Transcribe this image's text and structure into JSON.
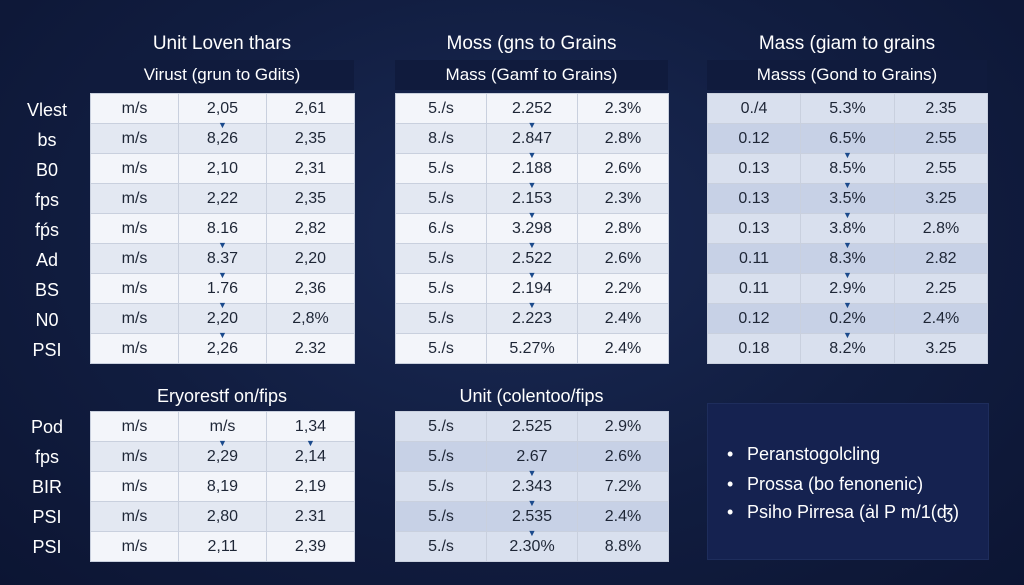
{
  "tables": [
    {
      "title": "Unit Loven thars",
      "subtitle": "Virust (grun to Gdits)",
      "rows": [
        {
          "label": "Vlest",
          "cells": [
            "m/s",
            "2,05",
            "2,61"
          ]
        },
        {
          "label": "bs",
          "cells": [
            "m/s",
            "8,26",
            "2,35"
          ]
        },
        {
          "label": "B0",
          "cells": [
            "m/s",
            "2,10",
            "2,31"
          ]
        },
        {
          "label": "fps",
          "cells": [
            "m/s",
            "2,22",
            "2,35"
          ]
        },
        {
          "label": "fṕs",
          "cells": [
            "m/s",
            "8.16",
            "2,82"
          ]
        },
        {
          "label": "Ad",
          "cells": [
            "m/s",
            "8.37",
            "2,20"
          ]
        },
        {
          "label": "BS",
          "cells": [
            "m/s",
            "1.76",
            "2,36"
          ]
        },
        {
          "label": "N0",
          "cells": [
            "m/s",
            "2,20",
            "2,8%"
          ]
        },
        {
          "label": "PSI",
          "cells": [
            "m/s",
            "2,26",
            "2.32"
          ]
        }
      ]
    },
    {
      "title": "Moss (gns to Grains",
      "subtitle": "Mass (Gamf to Grains)",
      "rows": [
        {
          "cells": [
            "5./s",
            "2.252",
            "2.3%"
          ]
        },
        {
          "cells": [
            "8./s",
            "2.847",
            "2.8%"
          ]
        },
        {
          "cells": [
            "5./s",
            "2.188",
            "2.6%"
          ]
        },
        {
          "cells": [
            "5./s",
            "2.153",
            "2.3%"
          ]
        },
        {
          "cells": [
            "6./s",
            "3.298",
            "2.8%"
          ]
        },
        {
          "cells": [
            "5./s",
            "2.522",
            "2.6%"
          ]
        },
        {
          "cells": [
            "5./s",
            "2.194",
            "2.2%"
          ]
        },
        {
          "cells": [
            "5./s",
            "2.223",
            "2.4%"
          ]
        },
        {
          "cells": [
            "5./s",
            "5.27%",
            "2.4%"
          ]
        }
      ]
    },
    {
      "title": "Mass (giam to grains",
      "subtitle": "Masss (Gond to Grains)",
      "rows": [
        {
          "cells": [
            "0./4",
            "5.3%",
            "2.35"
          ]
        },
        {
          "cells": [
            "0.12",
            "6.5%",
            "2.55"
          ]
        },
        {
          "cells": [
            "0.13",
            "8.5%",
            "2.55"
          ]
        },
        {
          "cells": [
            "0.13",
            "3.5%",
            "3.25"
          ]
        },
        {
          "cells": [
            "0.13",
            "3.8%",
            "2.8%"
          ]
        },
        {
          "cells": [
            "0.11",
            "8.3%",
            "2.82"
          ]
        },
        {
          "cells": [
            "0.11",
            "2.9%",
            "2.25"
          ]
        },
        {
          "cells": [
            "0.12",
            "0.2%",
            "2.4%"
          ]
        },
        {
          "cells": [
            "0.18",
            "8.2%",
            "3.25"
          ]
        }
      ]
    },
    {
      "title": "Eryorestf on/fips",
      "rows": [
        {
          "label": "Pod",
          "cells": [
            "m/s",
            "m/s",
            "1,34"
          ]
        },
        {
          "label": "fps",
          "cells": [
            "m/s",
            "2,29",
            "2,14"
          ]
        },
        {
          "label": "BIR",
          "cells": [
            "m/s",
            "8,19",
            "2,19"
          ]
        },
        {
          "label": "PSI",
          "cells": [
            "m/s",
            "2,80",
            "2.31"
          ]
        },
        {
          "label": "PSI",
          "cells": [
            "m/s",
            "2,11",
            "2,39"
          ]
        }
      ]
    },
    {
      "title": "Unit (colentoo/fips",
      "rows": [
        {
          "cells": [
            "5./s",
            "2.525",
            "2.9%"
          ]
        },
        {
          "cells": [
            "5./s",
            "2.67",
            "2.6%"
          ]
        },
        {
          "cells": [
            "5./s",
            "2.343",
            "7.2%"
          ]
        },
        {
          "cells": [
            "5./s",
            "2.535",
            "2.4%"
          ]
        },
        {
          "cells": [
            "5./s",
            "2.30%",
            "8.8%"
          ]
        }
      ]
    }
  ],
  "notes": {
    "items": [
      "Peranstogolcling",
      "Prossa (bo fenonenic)",
      "Psiho Pirresa (ȧl P m/1(ʤ)"
    ]
  }
}
